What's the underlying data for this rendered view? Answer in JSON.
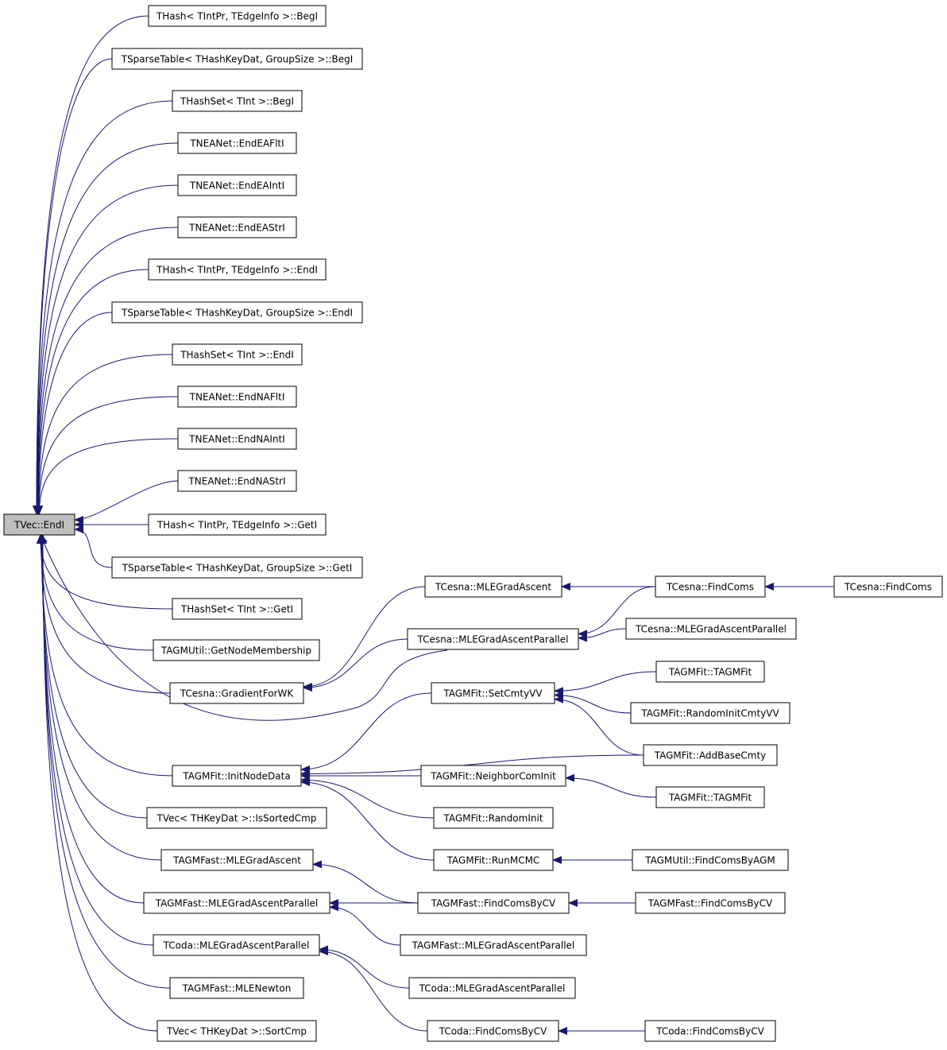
{
  "nodes": [
    {
      "label": "TVec::EndI"
    },
    {
      "label": "THash< TIntPr, TEdgeInfo >::BegI"
    },
    {
      "label": "TSparseTable< THashKeyDat, GroupSize >::BegI"
    },
    {
      "label": "THashSet< TInt >::BegI"
    },
    {
      "label": "TNEANet::EndEAFltI"
    },
    {
      "label": "TNEANet::EndEAIntI"
    },
    {
      "label": "TNEANet::EndEAStrI"
    },
    {
      "label": "THash< TIntPr, TEdgeInfo >::EndI"
    },
    {
      "label": "TSparseTable< THashKeyDat, GroupSize >::EndI"
    },
    {
      "label": "THashSet< TInt >::EndI"
    },
    {
      "label": "TNEANet::EndNAFltI"
    },
    {
      "label": "TNEANet::EndNAIntI"
    },
    {
      "label": "TNEANet::EndNAStrI"
    },
    {
      "label": "THash< TIntPr, TEdgeInfo >::GetI"
    },
    {
      "label": "TSparseTable< THashKeyDat, GroupSize >::GetI"
    },
    {
      "label": "THashSet< TInt >::GetI"
    },
    {
      "label": "TAGMUtil::GetNodeMembership"
    },
    {
      "label": "TCesna::GradientForWK"
    },
    {
      "label": "TAGMFit::InitNodeData"
    },
    {
      "label": "TVec< THKeyDat >::IsSortedCmp"
    },
    {
      "label": "TAGMFast::MLEGradAscent"
    },
    {
      "label": "TAGMFast::MLEGradAscentParallel"
    },
    {
      "label": "TCoda::MLEGradAscentParallel"
    },
    {
      "label": "TAGMFast::MLENewton"
    },
    {
      "label": "TVec< THKeyDat >::SortCmp"
    },
    {
      "label": "TCesna::MLEGradAscent"
    },
    {
      "label": "TCesna::MLEGradAscentParallel"
    },
    {
      "label": "TAGMFit::SetCmtyVV"
    },
    {
      "label": "TAGMFit::NeighborComInit"
    },
    {
      "label": "TAGMFit::RandomInit"
    },
    {
      "label": "TAGMFit::RunMCMC"
    },
    {
      "label": "TAGMFast::FindComsByCV"
    },
    {
      "label": "TAGMFast::MLEGradAscentParallel"
    },
    {
      "label": "TCoda::MLEGradAscentParallel"
    },
    {
      "label": "TCoda::FindComsByCV"
    },
    {
      "label": "TCesna::FindComs"
    },
    {
      "label": "TCesna::MLEGradAscentParallel"
    },
    {
      "label": "TAGMFit::TAGMFit"
    },
    {
      "label": "TAGMFit::RandomInitCmtyVV"
    },
    {
      "label": "TAGMFit::AddBaseCmty"
    },
    {
      "label": "TAGMFit::TAGMFit"
    },
    {
      "label": "TAGMUtil::FindComsByAGM"
    },
    {
      "label": "TAGMFast::FindComsByCV"
    },
    {
      "label": "TCoda::FindComsByCV"
    },
    {
      "label": "TCesna::FindComs"
    }
  ]
}
